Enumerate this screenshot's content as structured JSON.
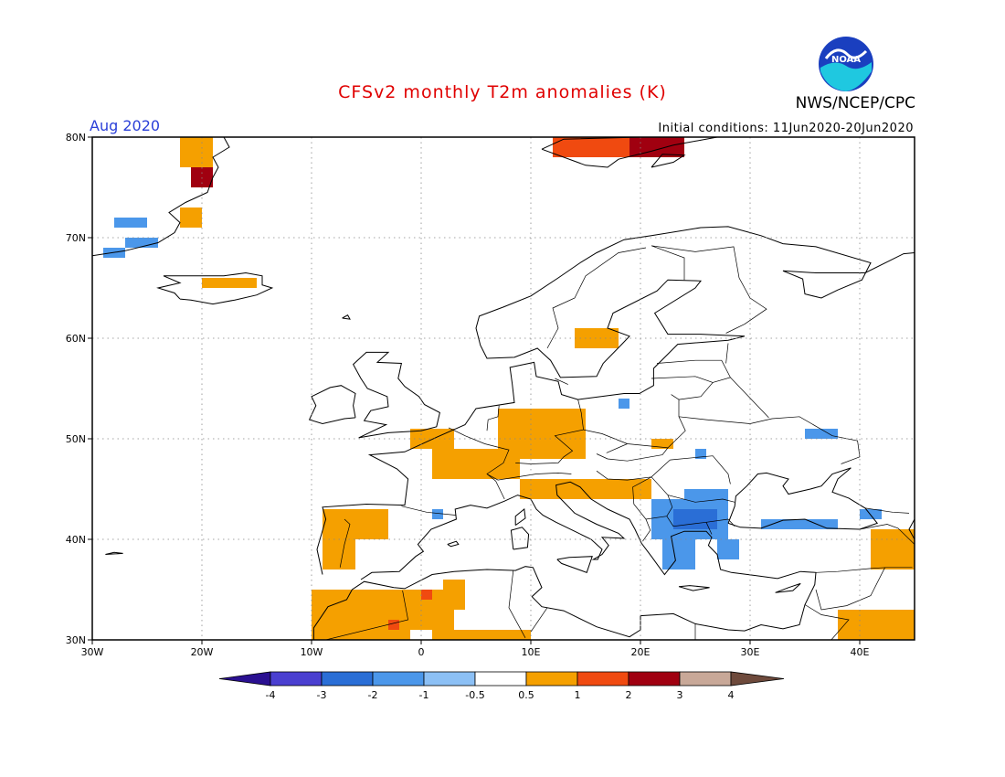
{
  "header": {
    "title": "CFSv2 monthly T2m anomalies (K)",
    "organization": "NWS/NCEP/CPC",
    "month": "Aug 2020",
    "initial_conditions": "Initial conditions: 11Jun2020-20Jun2020",
    "logo_text": "NOAA"
  },
  "map": {
    "lon_range": [
      -30,
      45
    ],
    "lat_range": [
      30,
      80
    ],
    "x_ticks": [
      "30W",
      "20W",
      "10W",
      "0",
      "10E",
      "20E",
      "30E",
      "40E"
    ],
    "y_ticks": [
      "30N",
      "40N",
      "50N",
      "60N",
      "70N",
      "80N"
    ],
    "grid": true
  },
  "colorbar": {
    "labels": [
      "-4",
      "-3",
      "-2",
      "-1",
      "-0.5",
      "0.5",
      "1",
      "2",
      "3",
      "4"
    ],
    "colors": [
      "#2a1091",
      "#4a3fd0",
      "#2a6ed6",
      "#4b97ea",
      "#8cc0f5",
      "#ffffff",
      "#f5a000",
      "#f04a10",
      "#a00010",
      "#c8a898",
      "#6e4a3c"
    ]
  },
  "anomalies": [
    {
      "lon": -22,
      "lat": 77,
      "w": 3,
      "h": 3,
      "level": "1"
    },
    {
      "lon": -21,
      "lat": 75,
      "w": 2,
      "h": 2,
      "level": "3"
    },
    {
      "lon": -22,
      "lat": 71,
      "w": 2,
      "h": 2,
      "level": "1"
    },
    {
      "lon": -28,
      "lat": 71,
      "w": 3,
      "h": 1,
      "level": "-1"
    },
    {
      "lon": -27,
      "lat": 69,
      "w": 3,
      "h": 1,
      "level": "-1"
    },
    {
      "lon": -29,
      "lat": 68,
      "w": 2,
      "h": 1,
      "level": "-1"
    },
    {
      "lon": -20,
      "lat": 65,
      "w": 5,
      "h": 1,
      "level": "1"
    },
    {
      "lon": 12,
      "lat": 78,
      "w": 7,
      "h": 2,
      "level": "2"
    },
    {
      "lon": 19,
      "lat": 78,
      "w": 5,
      "h": 2,
      "level": "3"
    },
    {
      "lon": 14,
      "lat": 59,
      "w": 4,
      "h": 2,
      "level": "1"
    },
    {
      "lon": -1,
      "lat": 49,
      "w": 4,
      "h": 2,
      "level": "1"
    },
    {
      "lon": 1,
      "lat": 46,
      "w": 8,
      "h": 3,
      "level": "1"
    },
    {
      "lon": 7,
      "lat": 48,
      "w": 8,
      "h": 5,
      "level": "1"
    },
    {
      "lon": 9,
      "lat": 44,
      "w": 12,
      "h": 2,
      "level": "1"
    },
    {
      "lon": 21,
      "lat": 49,
      "w": 2,
      "h": 1,
      "level": "1"
    },
    {
      "lon": -9,
      "lat": 40,
      "w": 6,
      "h": 3,
      "level": "1"
    },
    {
      "lon": -9,
      "lat": 37,
      "w": 3,
      "h": 3,
      "level": "1"
    },
    {
      "lon": -10,
      "lat": 30,
      "w": 9,
      "h": 5,
      "level": "1"
    },
    {
      "lon": -1,
      "lat": 31,
      "w": 4,
      "h": 4,
      "level": "1"
    },
    {
      "lon": 2,
      "lat": 33,
      "w": 2,
      "h": 3,
      "level": "1"
    },
    {
      "lon": 1,
      "lat": 30,
      "w": 9,
      "h": 1,
      "level": "1"
    },
    {
      "lon": 0,
      "lat": 34,
      "w": 1,
      "h": 1,
      "level": "2"
    },
    {
      "lon": -3,
      "lat": 31,
      "w": 1,
      "h": 1,
      "level": "2"
    },
    {
      "lon": 38,
      "lat": 30,
      "w": 7,
      "h": 3,
      "level": "1"
    },
    {
      "lon": 41,
      "lat": 37,
      "w": 4,
      "h": 4,
      "level": "1"
    },
    {
      "lon": 21,
      "lat": 40,
      "w": 7,
      "h": 4,
      "level": "-1"
    },
    {
      "lon": 23,
      "lat": 41,
      "w": 4,
      "h": 2,
      "level": "-2"
    },
    {
      "lon": 24,
      "lat": 43,
      "w": 4,
      "h": 2,
      "level": "-1"
    },
    {
      "lon": 22,
      "lat": 37,
      "w": 3,
      "h": 3,
      "level": "-1"
    },
    {
      "lon": 27,
      "lat": 38,
      "w": 2,
      "h": 2,
      "level": "-1"
    },
    {
      "lon": 31,
      "lat": 41,
      "w": 7,
      "h": 1,
      "level": "-1"
    },
    {
      "lon": 35,
      "lat": 50,
      "w": 3,
      "h": 1,
      "level": "-1"
    },
    {
      "lon": 40,
      "lat": 42,
      "w": 2,
      "h": 1,
      "level": "-1"
    },
    {
      "lon": 1,
      "lat": 42,
      "w": 1,
      "h": 1,
      "level": "-1"
    },
    {
      "lon": 18,
      "lat": 53,
      "w": 1,
      "h": 1,
      "level": "-1"
    },
    {
      "lon": 25,
      "lat": 48,
      "w": 1,
      "h": 1,
      "level": "-1"
    }
  ]
}
